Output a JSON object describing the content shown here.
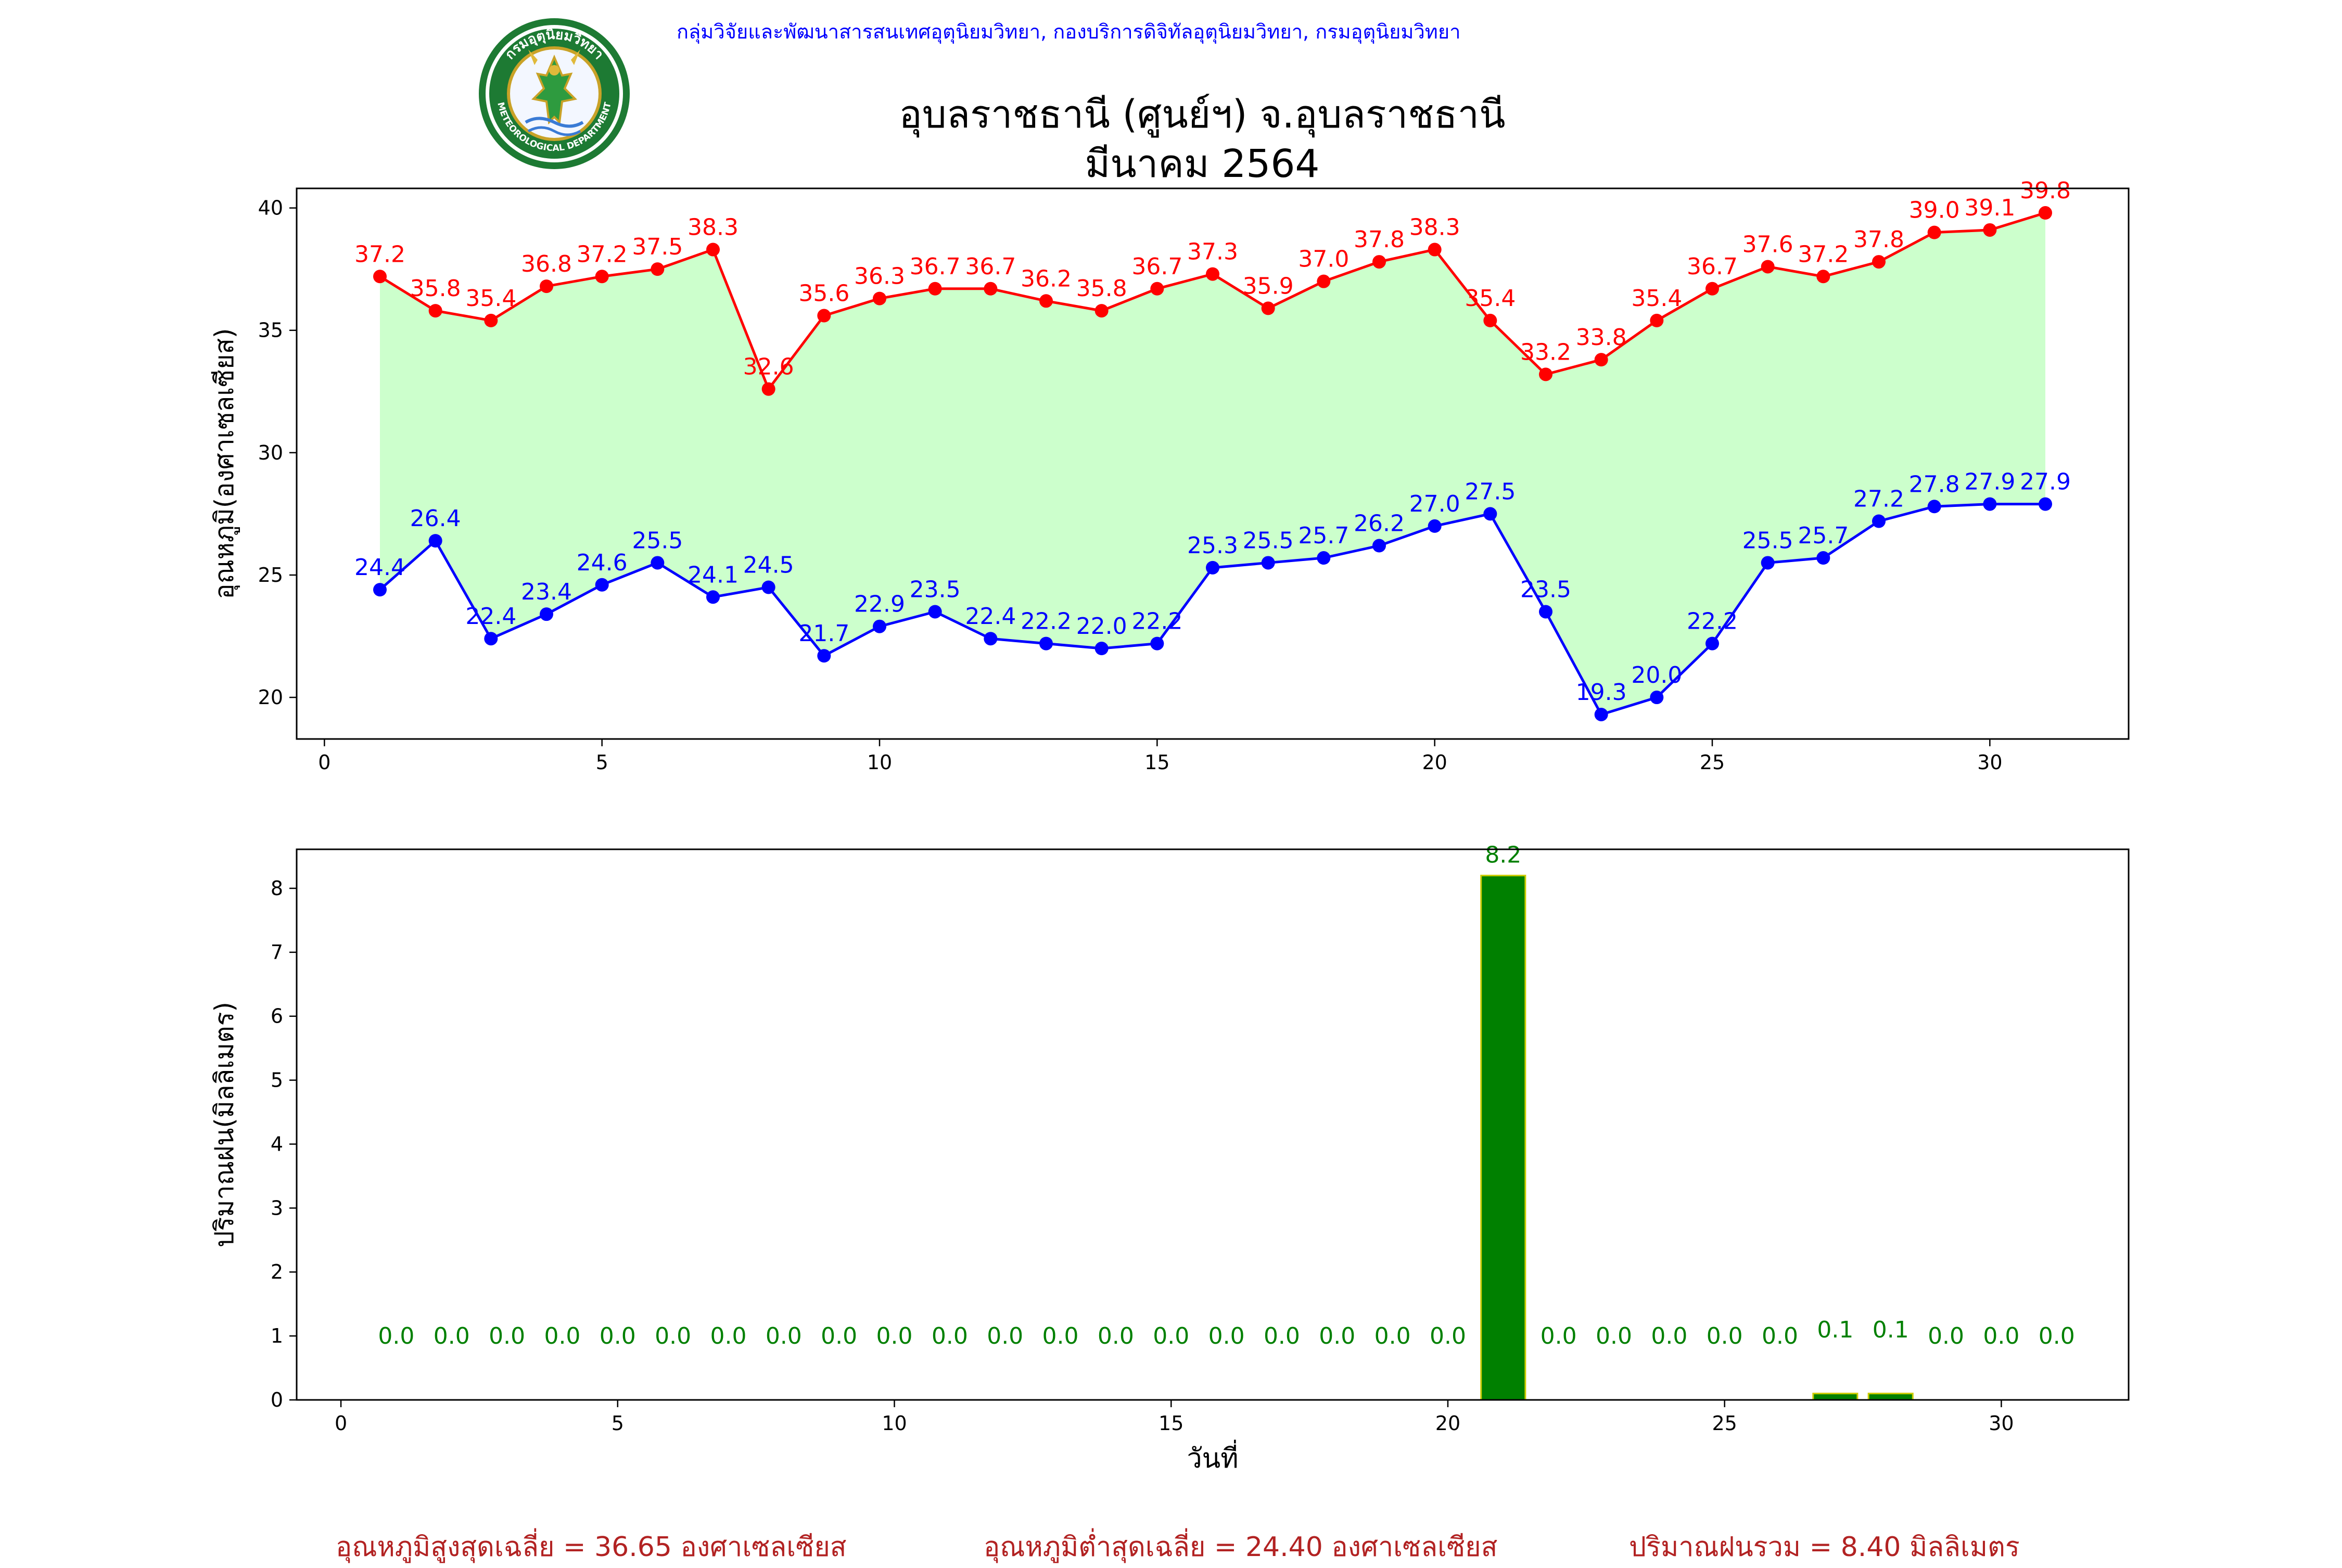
{
  "header": {
    "agency": "กลุ่มวิจัยและพัฒนาสารสนเทศอุตุนิยมวิทยา, กองบริการดิจิทัลอุตุนิยมวิทยา, กรมอุตุนิยมวิทยา",
    "title_line1": "อุบลราชธานี (ศูนย์ฯ) จ.อุบลราชธานี",
    "title_line2": "มีนาคม 2564",
    "logo": {
      "name": "meteorological-department-seal",
      "text_top": "กรมอุตุนิยมวิทยา",
      "text_bottom": "METEOROLOGICAL DEPARTMENT"
    }
  },
  "footer": {
    "avg_max": "อุณหภูมิสูงสุดเฉลี่ย = 36.65 องศาเซลเซียส",
    "avg_min": "อุณหภูมิต่ำสุดเฉลี่ย = 24.40 องศาเซลเซียส",
    "total_rain": "ปริมาณฝนรวม = 8.40 มิลลิเมตร"
  },
  "colors": {
    "max_line": "#ff0000",
    "min_line": "#0000ff",
    "fill": "#ccffcc",
    "bar": "#008000",
    "bar_edge": "#cccc00",
    "rain_label": "#008000",
    "footer": "#b22222",
    "agency": "#0000ff"
  },
  "chart_data": [
    {
      "type": "line",
      "ylabel": "อุณหภูมิ(องศาเซลเซียส)",
      "xlabel": "",
      "xlim": [
        -0.5,
        32.5
      ],
      "ylim": [
        18.3,
        40.8
      ],
      "xticks": [
        0,
        5,
        10,
        15,
        20,
        25,
        30
      ],
      "yticks": [
        20,
        25,
        30,
        35,
        40
      ],
      "grid": false,
      "fill_between": true,
      "x": [
        1,
        2,
        3,
        4,
        5,
        6,
        7,
        8,
        9,
        10,
        11,
        12,
        13,
        14,
        15,
        16,
        17,
        18,
        19,
        20,
        21,
        22,
        23,
        24,
        25,
        26,
        27,
        28,
        29,
        30,
        31
      ],
      "series": [
        {
          "values": [
            37.2,
            35.8,
            35.4,
            36.8,
            37.2,
            37.5,
            38.3,
            32.6,
            35.6,
            36.3,
            36.7,
            36.7,
            36.2,
            35.8,
            36.7,
            37.3,
            35.9,
            37.0,
            37.8,
            38.3,
            35.4,
            33.2,
            33.8,
            35.4,
            36.7,
            37.6,
            37.2,
            37.8,
            39.0,
            39.1,
            39.8
          ]
        },
        {
          "values": [
            24.4,
            26.4,
            22.4,
            23.4,
            24.6,
            25.5,
            24.1,
            24.5,
            21.7,
            22.9,
            23.5,
            22.4,
            22.2,
            22.0,
            22.2,
            25.3,
            25.5,
            25.7,
            26.2,
            27.0,
            27.5,
            23.5,
            19.3,
            20.0,
            22.2,
            25.5,
            25.7,
            27.2,
            27.8,
            27.9,
            27.9
          ]
        }
      ]
    },
    {
      "type": "bar",
      "ylabel": "ปริมาณฝน(มิลลิเมตร)",
      "xlabel": "วันที่",
      "xlim": [
        -0.8,
        32.3
      ],
      "ylim": [
        0,
        8.61
      ],
      "xticks": [
        0,
        5,
        10,
        15,
        20,
        25,
        30
      ],
      "yticks": [
        0,
        1,
        2,
        3,
        4,
        5,
        6,
        7,
        8
      ],
      "grid": false,
      "x": [
        1,
        2,
        3,
        4,
        5,
        6,
        7,
        8,
        9,
        10,
        11,
        12,
        13,
        14,
        15,
        16,
        17,
        18,
        19,
        20,
        21,
        22,
        23,
        24,
        25,
        26,
        27,
        28,
        29,
        30,
        31
      ],
      "values": [
        0,
        0,
        0,
        0,
        0,
        0,
        0,
        0,
        0,
        0,
        0,
        0,
        0,
        0,
        0,
        0,
        0,
        0,
        0,
        0,
        8.2,
        0,
        0,
        0,
        0,
        0,
        0.1,
        0.1,
        0,
        0,
        0
      ]
    }
  ]
}
